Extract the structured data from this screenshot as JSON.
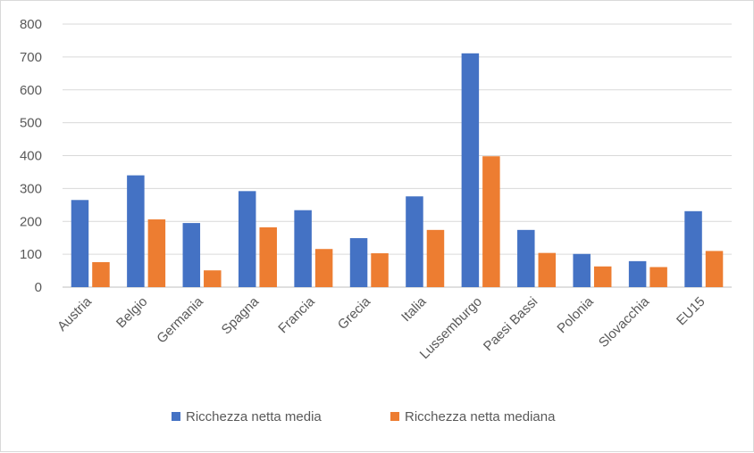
{
  "chart_data": {
    "type": "bar",
    "categories": [
      "Austria",
      "Belgio",
      "Germania",
      "Spagna",
      "Francia",
      "Grecia",
      "Italia",
      "Lussemburgo",
      "Paesi Bassi",
      "Polonia",
      "Slovacchia",
      "EU15"
    ],
    "series": [
      {
        "name": "Ricchezza netta media",
        "values": [
          265,
          340,
          195,
          292,
          234,
          149,
          276,
          711,
          174,
          101,
          79,
          231
        ],
        "color": "#4472c4"
      },
      {
        "name": "Ricchezza netta mediana",
        "values": [
          76,
          206,
          51,
          182,
          116,
          103,
          174,
          398,
          104,
          63,
          61,
          110
        ],
        "color": "#ed7d31"
      }
    ],
    "ylim": [
      0,
      800
    ],
    "yticks": [
      0,
      100,
      200,
      300,
      400,
      500,
      600,
      700,
      800
    ],
    "grid": true,
    "legend_position": "bottom",
    "title": "",
    "xlabel": "",
    "ylabel": ""
  }
}
